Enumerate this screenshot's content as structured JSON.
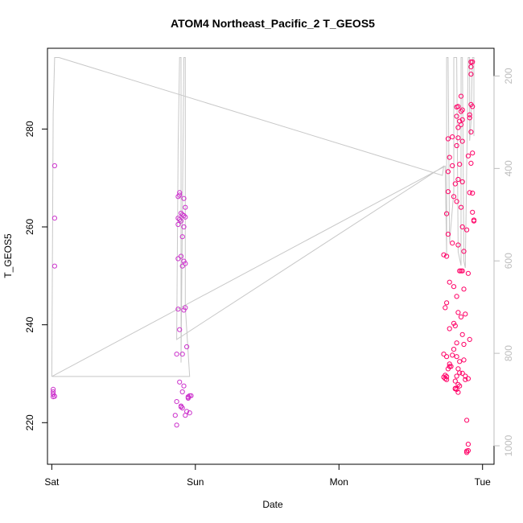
{
  "chart_data": {
    "type": "scatter",
    "title": "ATOM4 Northeast_Pacific_2 T_GEOS5",
    "xlabel": "Date",
    "ylabel": "T_GEOS5",
    "x_unit": "days",
    "xlim": [
      -0.03,
      3.08
    ],
    "ylim": [
      211.5,
      296.5
    ],
    "x_ticks": [
      {
        "value": 0,
        "label": "Sat"
      },
      {
        "value": 1,
        "label": "Sun"
      },
      {
        "value": 2,
        "label": "Mon"
      },
      {
        "value": 3,
        "label": "Tue"
      }
    ],
    "y_ticks": [
      {
        "value": 220,
        "label": "220"
      },
      {
        "value": 240,
        "label": "240"
      },
      {
        "value": 260,
        "label": "260"
      },
      {
        "value": 280,
        "label": "280"
      }
    ],
    "y2_range": [
      1040,
      140
    ],
    "y2_ticks": [
      {
        "value": 200,
        "label": "200"
      },
      {
        "value": 400,
        "label": "400"
      },
      {
        "value": 600,
        "label": "600"
      },
      {
        "value": 800,
        "label": "800"
      },
      {
        "value": 1000,
        "label": "1000"
      }
    ],
    "grid": false,
    "colors": {
      "points_early": "#cc33cc",
      "points_late": "#ff0066",
      "altitude_line": "#c8c8c8"
    },
    "series": [
      {
        "type": "scatter",
        "values": [
          [
            0.02,
            272.5
          ],
          [
            0.02,
            261.8
          ],
          [
            0.02,
            252
          ],
          [
            0.01,
            226.8
          ],
          [
            0.01,
            226.3
          ],
          [
            0.01,
            225.8
          ],
          [
            0.02,
            225.4
          ],
          [
            0.01,
            225.3
          ],
          [
            0.89,
            267
          ],
          [
            0.89,
            266.5
          ],
          [
            0.88,
            266.2
          ],
          [
            0.92,
            265.8
          ],
          [
            0.93,
            264
          ],
          [
            0.9,
            262.8
          ],
          [
            0.91,
            262.5
          ],
          [
            0.92,
            262.3
          ],
          [
            0.93,
            262
          ],
          [
            0.88,
            261.8
          ],
          [
            0.89,
            261.5
          ],
          [
            0.9,
            261.2
          ],
          [
            0.88,
            260.5
          ],
          [
            0.92,
            260
          ],
          [
            0.91,
            258
          ],
          [
            0.9,
            254
          ],
          [
            0.88,
            253.5
          ],
          [
            0.92,
            253
          ],
          [
            0.93,
            252.5
          ],
          [
            0.91,
            252
          ],
          [
            0.93,
            243.5
          ],
          [
            0.88,
            243.2
          ],
          [
            0.92,
            243
          ],
          [
            0.89,
            239
          ],
          [
            0.94,
            235.5
          ],
          [
            0.87,
            234
          ],
          [
            0.91,
            234
          ],
          [
            0.89,
            228.3
          ],
          [
            0.92,
            227.5
          ],
          [
            0.91,
            226.3
          ],
          [
            0.87,
            224.3
          ],
          [
            0.96,
            225.5
          ],
          [
            0.95,
            225.3
          ],
          [
            0.97,
            225.5
          ],
          [
            0.95,
            225.2
          ],
          [
            0.9,
            223.2
          ],
          [
            0.91,
            223
          ],
          [
            0.94,
            222.3
          ],
          [
            0.96,
            222
          ],
          [
            0.86,
            221.5
          ],
          [
            0.93,
            221.5
          ],
          [
            0.87,
            219.5
          ],
          [
            0.9,
            223.4
          ],
          [
            0.95,
            225
          ],
          [
            2.73,
            254.3
          ],
          [
            2.75,
            254
          ],
          [
            2.74,
            243.5
          ],
          [
            2.75,
            244.5
          ],
          [
            2.77,
            239.2
          ],
          [
            2.75,
            233.5
          ],
          [
            2.73,
            234
          ],
          [
            2.76,
            231
          ],
          [
            2.77,
            232
          ],
          [
            2.77,
            231.5
          ],
          [
            2.78,
            231.5
          ],
          [
            2.79,
            233.8
          ],
          [
            2.74,
            229.7
          ],
          [
            2.75,
            229.4
          ],
          [
            2.74,
            229
          ],
          [
            2.73,
            229.3
          ],
          [
            2.75,
            228.8
          ],
          [
            2.76,
            278
          ],
          [
            2.76,
            271.3
          ],
          [
            2.77,
            274.2
          ],
          [
            2.76,
            267.2
          ],
          [
            2.75,
            262.7
          ],
          [
            2.76,
            258.5
          ],
          [
            2.77,
            248.7
          ],
          [
            2.79,
            256.7
          ],
          [
            2.8,
            266.2
          ],
          [
            2.79,
            272.5
          ],
          [
            2.79,
            278.4
          ],
          [
            2.81,
            268.8
          ],
          [
            2.8,
            247.8
          ],
          [
            2.8,
            240.3
          ],
          [
            2.81,
            239.8
          ],
          [
            2.8,
            235
          ],
          [
            2.82,
            233.5
          ],
          [
            2.82,
            236.3
          ],
          [
            2.81,
            228.5
          ],
          [
            2.81,
            227
          ],
          [
            2.82,
            226.8
          ],
          [
            2.81,
            226.9
          ],
          [
            2.84,
            227.5
          ],
          [
            2.83,
            226.2
          ],
          [
            2.83,
            227.8
          ],
          [
            2.84,
            230.2
          ],
          [
            2.83,
            231
          ],
          [
            2.82,
            229.5
          ],
          [
            2.84,
            232.5
          ],
          [
            2.83,
            242.5
          ],
          [
            2.82,
            245.8
          ],
          [
            2.84,
            251
          ],
          [
            2.85,
            251
          ],
          [
            2.83,
            256.3
          ],
          [
            2.82,
            265.2
          ],
          [
            2.83,
            269.7
          ],
          [
            2.84,
            272.8
          ],
          [
            2.83,
            278.2
          ],
          [
            2.82,
            276.6
          ],
          [
            2.83,
            280.3
          ],
          [
            2.82,
            282.6
          ],
          [
            2.83,
            284.6
          ],
          [
            2.82,
            284.5
          ],
          [
            2.84,
            281.6
          ],
          [
            2.85,
            286.7
          ],
          [
            2.85,
            283.6
          ],
          [
            2.86,
            283.9
          ],
          [
            2.86,
            281.9
          ],
          [
            2.85,
            280.9
          ],
          [
            2.86,
            277.5
          ],
          [
            2.86,
            269.2
          ],
          [
            2.85,
            264
          ],
          [
            2.86,
            260
          ],
          [
            2.87,
            255
          ],
          [
            2.86,
            251
          ],
          [
            2.87,
            247.3
          ],
          [
            2.85,
            241.6
          ],
          [
            2.88,
            242.2
          ],
          [
            2.86,
            238
          ],
          [
            2.87,
            236
          ],
          [
            2.86,
            230.1
          ],
          [
            2.87,
            232.8
          ],
          [
            2.88,
            229.5
          ],
          [
            2.88,
            228.8
          ],
          [
            2.89,
            220.5
          ],
          [
            2.9,
            215.6
          ],
          [
            2.89,
            214.2
          ],
          [
            2.9,
            214.3
          ],
          [
            2.89,
            213.9
          ],
          [
            2.9,
            229
          ],
          [
            2.91,
            237
          ],
          [
            2.9,
            250.5
          ],
          [
            2.89,
            259.4
          ],
          [
            2.91,
            267
          ],
          [
            2.9,
            274.5
          ],
          [
            2.92,
            279.4
          ],
          [
            2.91,
            282.9
          ],
          [
            2.91,
            282.3
          ],
          [
            2.92,
            285
          ],
          [
            2.93,
            284.6
          ],
          [
            2.92,
            291.2
          ],
          [
            2.92,
            292.7
          ],
          [
            2.93,
            293.7
          ],
          [
            2.92,
            293.7
          ],
          [
            2.93,
            275.1
          ],
          [
            2.92,
            273
          ],
          [
            2.93,
            266.9
          ],
          [
            2.93,
            263
          ],
          [
            2.94,
            261.4
          ],
          [
            2.94,
            261.2
          ]
        ]
      },
      {
        "type": "line",
        "axis": "right",
        "values": [
          [
            0.0,
            850
          ],
          [
            0.01,
            280
          ],
          [
            0.02,
            160
          ],
          [
            0.05,
            160
          ],
          [
            2.72,
            415
          ],
          [
            2.73,
            395
          ],
          [
            0.87,
            770
          ],
          [
            0.88,
            350
          ],
          [
            0.89,
            160
          ],
          [
            0.9,
            160
          ],
          [
            0.9,
            750
          ],
          [
            0.9,
            820
          ],
          [
            0.92,
            160
          ],
          [
            0.93,
            160
          ],
          [
            0.93,
            700
          ],
          [
            0.96,
            850
          ],
          [
            0.0,
            850
          ],
          [
            2.74,
            395
          ],
          [
            2.75,
            590
          ],
          [
            2.75,
            160
          ],
          [
            2.76,
            160
          ],
          [
            2.77,
            560
          ],
          [
            2.8,
            450
          ],
          [
            2.8,
            160
          ],
          [
            2.82,
            160
          ],
          [
            2.83,
            580
          ],
          [
            2.85,
            610
          ],
          [
            2.85,
            160
          ],
          [
            2.86,
            160
          ],
          [
            2.87,
            600
          ],
          [
            2.88,
            615
          ],
          [
            2.9,
            160
          ],
          [
            2.91,
            160
          ],
          [
            2.91,
            340
          ],
          [
            2.92,
            300
          ],
          [
            2.93,
            160
          ],
          [
            2.94,
            160
          ],
          [
            2.94,
            330
          ]
        ]
      }
    ]
  }
}
